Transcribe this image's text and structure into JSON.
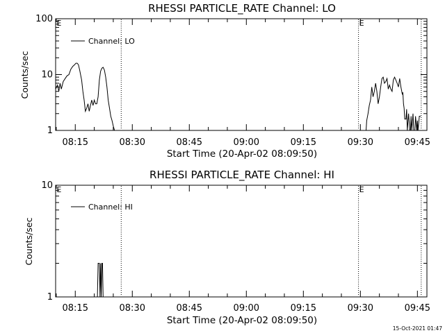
{
  "chart_data": [
    {
      "type": "line",
      "title": "RHESSI PARTICLE_RATE Channel: LO",
      "xlabel": "Start Time (20-Apr-02 08:09:50)",
      "ylabel": "Counts/sec",
      "yscale": "log",
      "ylim": [
        1,
        100
      ],
      "xlim": [
        "08:09:50",
        "09:47:30"
      ],
      "y_ticks": [
        "1",
        "10",
        "100"
      ],
      "x_ticks": [
        "08:15",
        "08:30",
        "08:45",
        "09:00",
        "09:15",
        "09:30",
        "09:45"
      ],
      "legend": "top-left",
      "series": [
        {
          "name": "Channel: LO",
          "color": "#000000",
          "x": [
            "08:09:50",
            "08:10:20",
            "08:10:40",
            "08:11:00",
            "08:11:20",
            "08:11:50",
            "08:12:20",
            "08:12:50",
            "08:13:20",
            "08:13:50",
            "08:14:20",
            "08:14:50",
            "08:15:10",
            "08:15:30",
            "08:15:50",
            "08:16:10",
            "08:16:40",
            "08:17:00",
            "08:17:20",
            "08:17:40",
            "08:18:00",
            "08:18:20",
            "08:18:40",
            "08:19:00",
            "08:19:20",
            "08:19:40",
            "08:20:00",
            "08:20:20",
            "08:20:40",
            "08:21:00",
            "08:21:20",
            "08:21:40",
            "08:22:00",
            "08:22:20",
            "08:22:40",
            "08:23:00",
            "08:23:20",
            "08:23:40",
            "08:24:00",
            "08:24:20",
            "08:24:40",
            "08:25:00",
            "08:25:20",
            "08:25:40",
            "08:26:00",
            "08:26:20",
            "08:26:40",
            "09:31:30",
            "09:31:40",
            "09:32:00",
            "09:32:20",
            "09:32:40",
            "09:33:00",
            "09:33:20",
            "09:33:40",
            "09:34:00",
            "09:34:20",
            "09:34:40",
            "09:35:00",
            "09:35:20",
            "09:35:40",
            "09:36:00",
            "09:36:20",
            "09:36:40",
            "09:37:00",
            "09:37:20",
            "09:37:40",
            "09:38:00",
            "09:38:20",
            "09:38:40",
            "09:39:00",
            "09:39:20",
            "09:39:40",
            "09:40:00",
            "09:40:20",
            "09:40:40",
            "09:41:00",
            "09:41:10",
            "09:41:20",
            "09:41:30",
            "09:41:40",
            "09:42:00",
            "09:42:10",
            "09:42:20",
            "09:42:40",
            "09:43:00",
            "09:43:10",
            "09:43:20",
            "09:43:30",
            "09:43:50",
            "09:44:00",
            "09:44:10",
            "09:44:20",
            "09:44:30",
            "09:44:50",
            "09:45:00",
            "09:45:10",
            "09:45:30",
            "09:45:50"
          ],
          "y": [
            5.5,
            6.5,
            5,
            7,
            5.5,
            7.5,
            8.5,
            9.5,
            10,
            12.5,
            14,
            15,
            16,
            16,
            15,
            12,
            8,
            5,
            3.5,
            2.2,
            2.5,
            3,
            2.2,
            2.8,
            3.5,
            2.8,
            3.5,
            3,
            3,
            4,
            8,
            11.5,
            13,
            13.5,
            12,
            9,
            6,
            3.5,
            2.5,
            1.8,
            1.5,
            1.2,
            1,
            1,
            1,
            1,
            1,
            1,
            1.5,
            2,
            2.8,
            3.5,
            6,
            4,
            5,
            7,
            5,
            3,
            4,
            6,
            8.5,
            9,
            7,
            7.5,
            8.5,
            5.5,
            6.5,
            5.5,
            5,
            8,
            9,
            8,
            7,
            6,
            8.5,
            6,
            4.5,
            4.8,
            3,
            2.5,
            1.6,
            1.6,
            2.4,
            1,
            2,
            1,
            1,
            1.8,
            1,
            2,
            1,
            1,
            1,
            1.8,
            1,
            1.5,
            1,
            1.8,
            1.8
          ]
        }
      ],
      "annotations": [
        {
          "label": "E",
          "x": "08:10:05",
          "line": false
        },
        {
          "label": "",
          "x": "08:27:05",
          "line": true
        },
        {
          "label": "E",
          "x": "09:29:30",
          "line": true
        },
        {
          "label": "",
          "x": "09:46:00",
          "line": true
        }
      ]
    },
    {
      "type": "line",
      "title": "RHESSI PARTICLE_RATE Channel: HI",
      "xlabel": "Start Time (20-Apr-02 08:09:50)",
      "ylabel": "Counts/sec",
      "yscale": "log",
      "ylim": [
        1,
        10
      ],
      "xlim": [
        "08:09:50",
        "09:47:30"
      ],
      "y_ticks": [
        "1",
        "10"
      ],
      "x_ticks": [
        "08:15",
        "08:30",
        "08:45",
        "09:00",
        "09:15",
        "09:30",
        "09:45"
      ],
      "legend": "top-left",
      "series": [
        {
          "name": "Channel: HI",
          "color": "#000000",
          "x": [
            "08:20:50",
            "08:21:00",
            "08:21:10",
            "08:21:20",
            "08:21:30",
            "08:21:40",
            "08:21:50",
            "08:22:00",
            "08:22:10",
            "08:22:20",
            "08:22:30"
          ],
          "y": [
            1,
            2,
            2,
            2,
            1,
            2,
            1,
            2,
            2,
            1,
            1
          ]
        }
      ],
      "annotations": [
        {
          "label": "E",
          "x": "08:10:05",
          "line": false
        },
        {
          "label": "",
          "x": "08:27:05",
          "line": true
        },
        {
          "label": "E",
          "x": "09:29:30",
          "line": true
        },
        {
          "label": "",
          "x": "09:46:00",
          "line": true
        }
      ]
    }
  ],
  "footer": {
    "timestamp": "15-Oct-2021 01:47"
  }
}
